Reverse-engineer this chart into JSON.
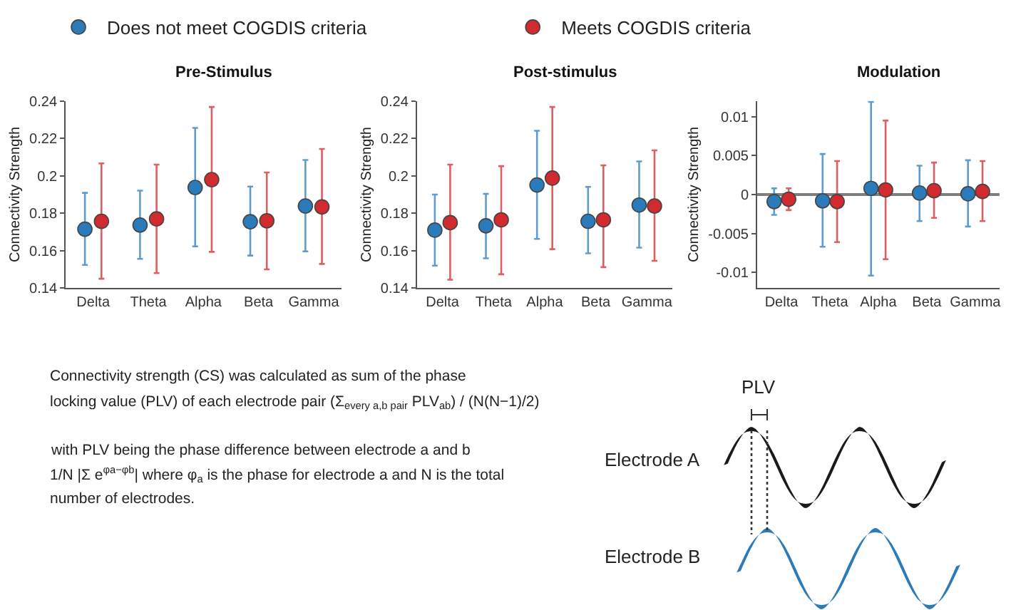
{
  "chart_data": [
    {
      "type": "scatter",
      "title": "Pre-Stimulus",
      "ylabel": "Connectivity Strength",
      "categories": [
        "Delta",
        "Theta",
        "Alpha",
        "Beta",
        "Gamma"
      ],
      "ylim": [
        0.14,
        0.24
      ],
      "yticks": [
        0.14,
        0.16,
        0.18,
        0.2,
        0.22,
        0.24
      ],
      "marker": "circle",
      "grid": false,
      "legend": "top",
      "series": [
        {
          "name": "Does not meet COGDIS criteria",
          "color": "#2b7bba",
          "values": [
            0.1715,
            0.1737,
            0.1938,
            0.1755,
            0.1839
          ],
          "errors": [
            [
              0.1524,
              0.1909
            ],
            [
              0.1556,
              0.1921
            ],
            [
              0.1623,
              0.2256
            ],
            [
              0.1574,
              0.1943
            ],
            [
              0.1596,
              0.2085
            ]
          ]
        },
        {
          "name": "Meets COGDIS criteria",
          "color": "#d12a2f",
          "values": [
            0.1757,
            0.177,
            0.198,
            0.176,
            0.1834
          ],
          "errors": [
            [
              0.145,
              0.2067
            ],
            [
              0.148,
              0.206
            ],
            [
              0.1594,
              0.2368
            ],
            [
              0.15,
              0.2018
            ],
            [
              0.1529,
              0.2144
            ]
          ]
        }
      ]
    },
    {
      "type": "scatter",
      "title": "Post-stimulus",
      "ylabel": "Connectivity Strength",
      "categories": [
        "Delta",
        "Theta",
        "Alpha",
        "Beta",
        "Gamma"
      ],
      "ylim": [
        0.14,
        0.24
      ],
      "yticks": [
        0.14,
        0.16,
        0.18,
        0.2,
        0.22,
        0.24
      ],
      "marker": "circle",
      "grid": false,
      "series": [
        {
          "color": "#2b7bba",
          "values": [
            0.171,
            0.1733,
            0.1951,
            0.1757,
            0.1844
          ],
          "errors": [
            [
              0.152,
              0.19
            ],
            [
              0.1559,
              0.1904
            ],
            [
              0.1663,
              0.2241
            ],
            [
              0.1586,
              0.1941
            ],
            [
              0.1616,
              0.2077
            ]
          ]
        },
        {
          "color": "#d12a2f",
          "values": [
            0.175,
            0.1765,
            0.1988,
            0.1765,
            0.1839
          ],
          "errors": [
            [
              0.1445,
              0.206
            ],
            [
              0.1474,
              0.2052
            ],
            [
              0.1608,
              0.2368
            ],
            [
              0.1512,
              0.2056
            ],
            [
              0.1546,
              0.2136
            ]
          ]
        }
      ]
    },
    {
      "type": "scatter",
      "title": "Modulation",
      "ylabel": "Connectivity Strength",
      "categories": [
        "Delta",
        "Theta",
        "Alpha",
        "Beta",
        "Gamma"
      ],
      "ylim": [
        -0.012,
        0.012
      ],
      "yticks": [
        -0.01,
        -0.005,
        0,
        0.005,
        0.01
      ],
      "marker": "circle",
      "grid": false,
      "ref_lines": [
        {
          "axis": "y",
          "value": 0,
          "color": "#7f7f7f"
        }
      ],
      "series": [
        {
          "color": "#2b7bba",
          "values": [
            -0.0009,
            -0.0008,
            0.0008,
            0.0002,
            0.0001
          ],
          "errors": [
            [
              -0.0026,
              0.0008
            ],
            [
              -0.0067,
              0.0052
            ],
            [
              -0.0104,
              0.0119
            ],
            [
              -0.0034,
              0.0037
            ],
            [
              -0.0041,
              0.0044
            ]
          ]
        },
        {
          "color": "#d12a2f",
          "values": [
            -0.0006,
            -0.0009,
            0.0006,
            0.0005,
            0.0004
          ],
          "errors": [
            [
              -0.002,
              0.0008
            ],
            [
              -0.0061,
              0.0043
            ],
            [
              -0.0083,
              0.0095
            ],
            [
              -0.003,
              0.0041
            ],
            [
              -0.0034,
              0.0043
            ]
          ]
        }
      ]
    },
    {
      "type": "other",
      "annotations": [
        "Connectivity strength (CS) was calculated as sum of the phase",
        "locking value (PLV) of each electrode pair (Σ$_{every a,b pair}$ PLV$_{ab}$) / (N(N−1)/2)",
        "with PLV being the phase difference between electrode a and b",
        "1/N |Σ e$^{φa−φb}$| where φ$_{a}$ is the phase for electrode a and N is the total",
        "number of electrodes.",
        "PLV",
        "Electrode A",
        "Electrode B"
      ]
    }
  ]
}
